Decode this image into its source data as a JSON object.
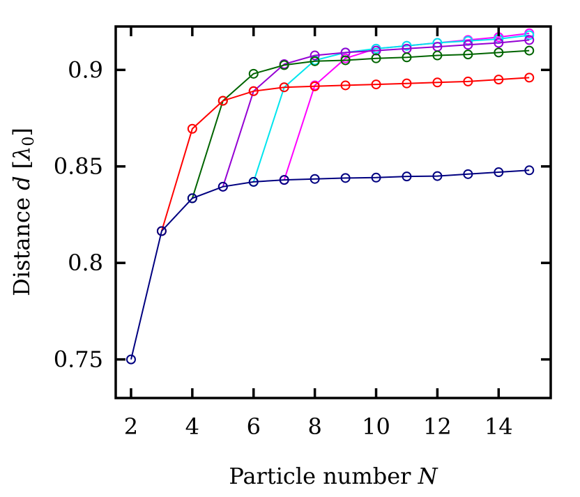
{
  "chart_data": {
    "type": "line",
    "xlabel_prefix": "Particle number ",
    "xlabel_var": "N",
    "ylabel_prefix": "Distance ",
    "ylabel_var": "d",
    "ylabel_unit_open": "[",
    "ylabel_unit_sym": "λ",
    "ylabel_unit_sub": "0",
    "ylabel_unit_close": "]",
    "xlim": [
      1.5,
      15.7
    ],
    "ylim": [
      0.73,
      0.9225
    ],
    "xticks": [
      2,
      4,
      6,
      8,
      10,
      12,
      14
    ],
    "yticks": [
      0.75,
      0.8,
      0.85,
      0.9
    ],
    "ytick_labels": [
      "0.75",
      "0.8",
      "0.85",
      "0.9"
    ],
    "grid": false,
    "series": [
      {
        "color": "#ff00ff",
        "points": [
          [
            7,
            0.843
          ],
          [
            8,
            0.892
          ],
          [
            9,
            0.906
          ],
          [
            10,
            0.911
          ],
          [
            11,
            0.9125
          ],
          [
            12,
            0.914
          ],
          [
            13,
            0.9155
          ],
          [
            14,
            0.917
          ],
          [
            15,
            0.919
          ]
        ]
      },
      {
        "color": "#00e5ee",
        "points": [
          [
            6,
            0.842
          ],
          [
            7,
            0.891
          ],
          [
            8,
            0.905
          ],
          [
            9,
            0.909
          ],
          [
            10,
            0.911
          ],
          [
            11,
            0.9125
          ],
          [
            12,
            0.914
          ],
          [
            13,
            0.915
          ],
          [
            14,
            0.916
          ],
          [
            15,
            0.918
          ]
        ]
      },
      {
        "color": "#9400d3",
        "points": [
          [
            5,
            0.8395
          ],
          [
            6,
            0.889
          ],
          [
            7,
            0.903
          ],
          [
            8,
            0.9075
          ],
          [
            9,
            0.909
          ],
          [
            10,
            0.91
          ],
          [
            11,
            0.911
          ],
          [
            12,
            0.912
          ],
          [
            13,
            0.913
          ],
          [
            14,
            0.914
          ],
          [
            15,
            0.9155
          ]
        ]
      },
      {
        "color": "#006400",
        "points": [
          [
            4,
            0.8335
          ],
          [
            5,
            0.884
          ],
          [
            6,
            0.898
          ],
          [
            7,
            0.9025
          ],
          [
            8,
            0.9045
          ],
          [
            9,
            0.905
          ],
          [
            10,
            0.906
          ],
          [
            11,
            0.9065
          ],
          [
            12,
            0.9075
          ],
          [
            13,
            0.908
          ],
          [
            14,
            0.909
          ],
          [
            15,
            0.91
          ]
        ]
      },
      {
        "color": "#ff0000",
        "points": [
          [
            3,
            0.8165
          ],
          [
            4,
            0.8695
          ],
          [
            5,
            0.884
          ],
          [
            6,
            0.889
          ],
          [
            7,
            0.891
          ],
          [
            8,
            0.8915
          ],
          [
            9,
            0.892
          ],
          [
            10,
            0.8925
          ],
          [
            11,
            0.893
          ],
          [
            12,
            0.8935
          ],
          [
            13,
            0.894
          ],
          [
            14,
            0.895
          ],
          [
            15,
            0.896
          ]
        ]
      },
      {
        "color": "#000080",
        "points": [
          [
            2,
            0.75
          ],
          [
            3,
            0.8165
          ],
          [
            4,
            0.8335
          ],
          [
            5,
            0.8395
          ],
          [
            6,
            0.842
          ],
          [
            7,
            0.843
          ],
          [
            8,
            0.8435
          ],
          [
            9,
            0.844
          ],
          [
            10,
            0.8442
          ],
          [
            11,
            0.8448
          ],
          [
            12,
            0.845
          ],
          [
            13,
            0.846
          ],
          [
            14,
            0.847
          ],
          [
            15,
            0.848
          ]
        ]
      }
    ]
  }
}
